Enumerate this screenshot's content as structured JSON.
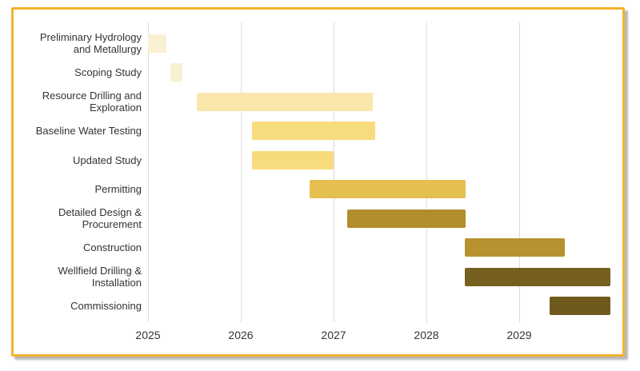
{
  "frame": {
    "border_color": "#F1B32E",
    "background_color": "#FFFFFF",
    "shadow_color": "#B9B9B9"
  },
  "chart_data": {
    "type": "bar",
    "variant": "gantt",
    "title": "",
    "xlabel": "",
    "ylabel": "",
    "grid": "vertical-only",
    "gridline_color": "#DCDCDC",
    "text_color": "#333333",
    "x_range": [
      2025,
      2030
    ],
    "x_ticks": [
      {
        "value": 2025,
        "label": "2025"
      },
      {
        "value": 2026,
        "label": "2026"
      },
      {
        "value": 2027,
        "label": "2027"
      },
      {
        "value": 2028,
        "label": "2028"
      },
      {
        "value": 2029,
        "label": "2029"
      }
    ],
    "tasks": [
      {
        "label": "Preliminary Hydrology and Metallurgy",
        "start": 2025.0,
        "end": 2025.2,
        "color": "#FAF0D2"
      },
      {
        "label": "Scoping Study",
        "start": 2025.24,
        "end": 2025.37,
        "color": "#FAF0D2"
      },
      {
        "label": "Resource Drilling and Exploration",
        "start": 2025.53,
        "end": 2027.42,
        "color": "#FAE7AC"
      },
      {
        "label": "Baseline Water Testing",
        "start": 2026.12,
        "end": 2027.45,
        "color": "#F8DB7D"
      },
      {
        "label": "Updated Study",
        "start": 2026.12,
        "end": 2027.0,
        "color": "#F8DB7D"
      },
      {
        "label": "Permitting",
        "start": 2026.74,
        "end": 2028.42,
        "color": "#E5C050"
      },
      {
        "label": "Detailed Design & Procurement",
        "start": 2027.15,
        "end": 2028.42,
        "color": "#B18E2C"
      },
      {
        "label": "Construction",
        "start": 2028.41,
        "end": 2029.49,
        "color": "#B79231"
      },
      {
        "label": "Wellfield Drilling & Installation",
        "start": 2028.41,
        "end": 2029.98,
        "color": "#75601F"
      },
      {
        "label": "Commissioning",
        "start": 2029.33,
        "end": 2029.98,
        "color": "#6F5A1D"
      }
    ]
  }
}
